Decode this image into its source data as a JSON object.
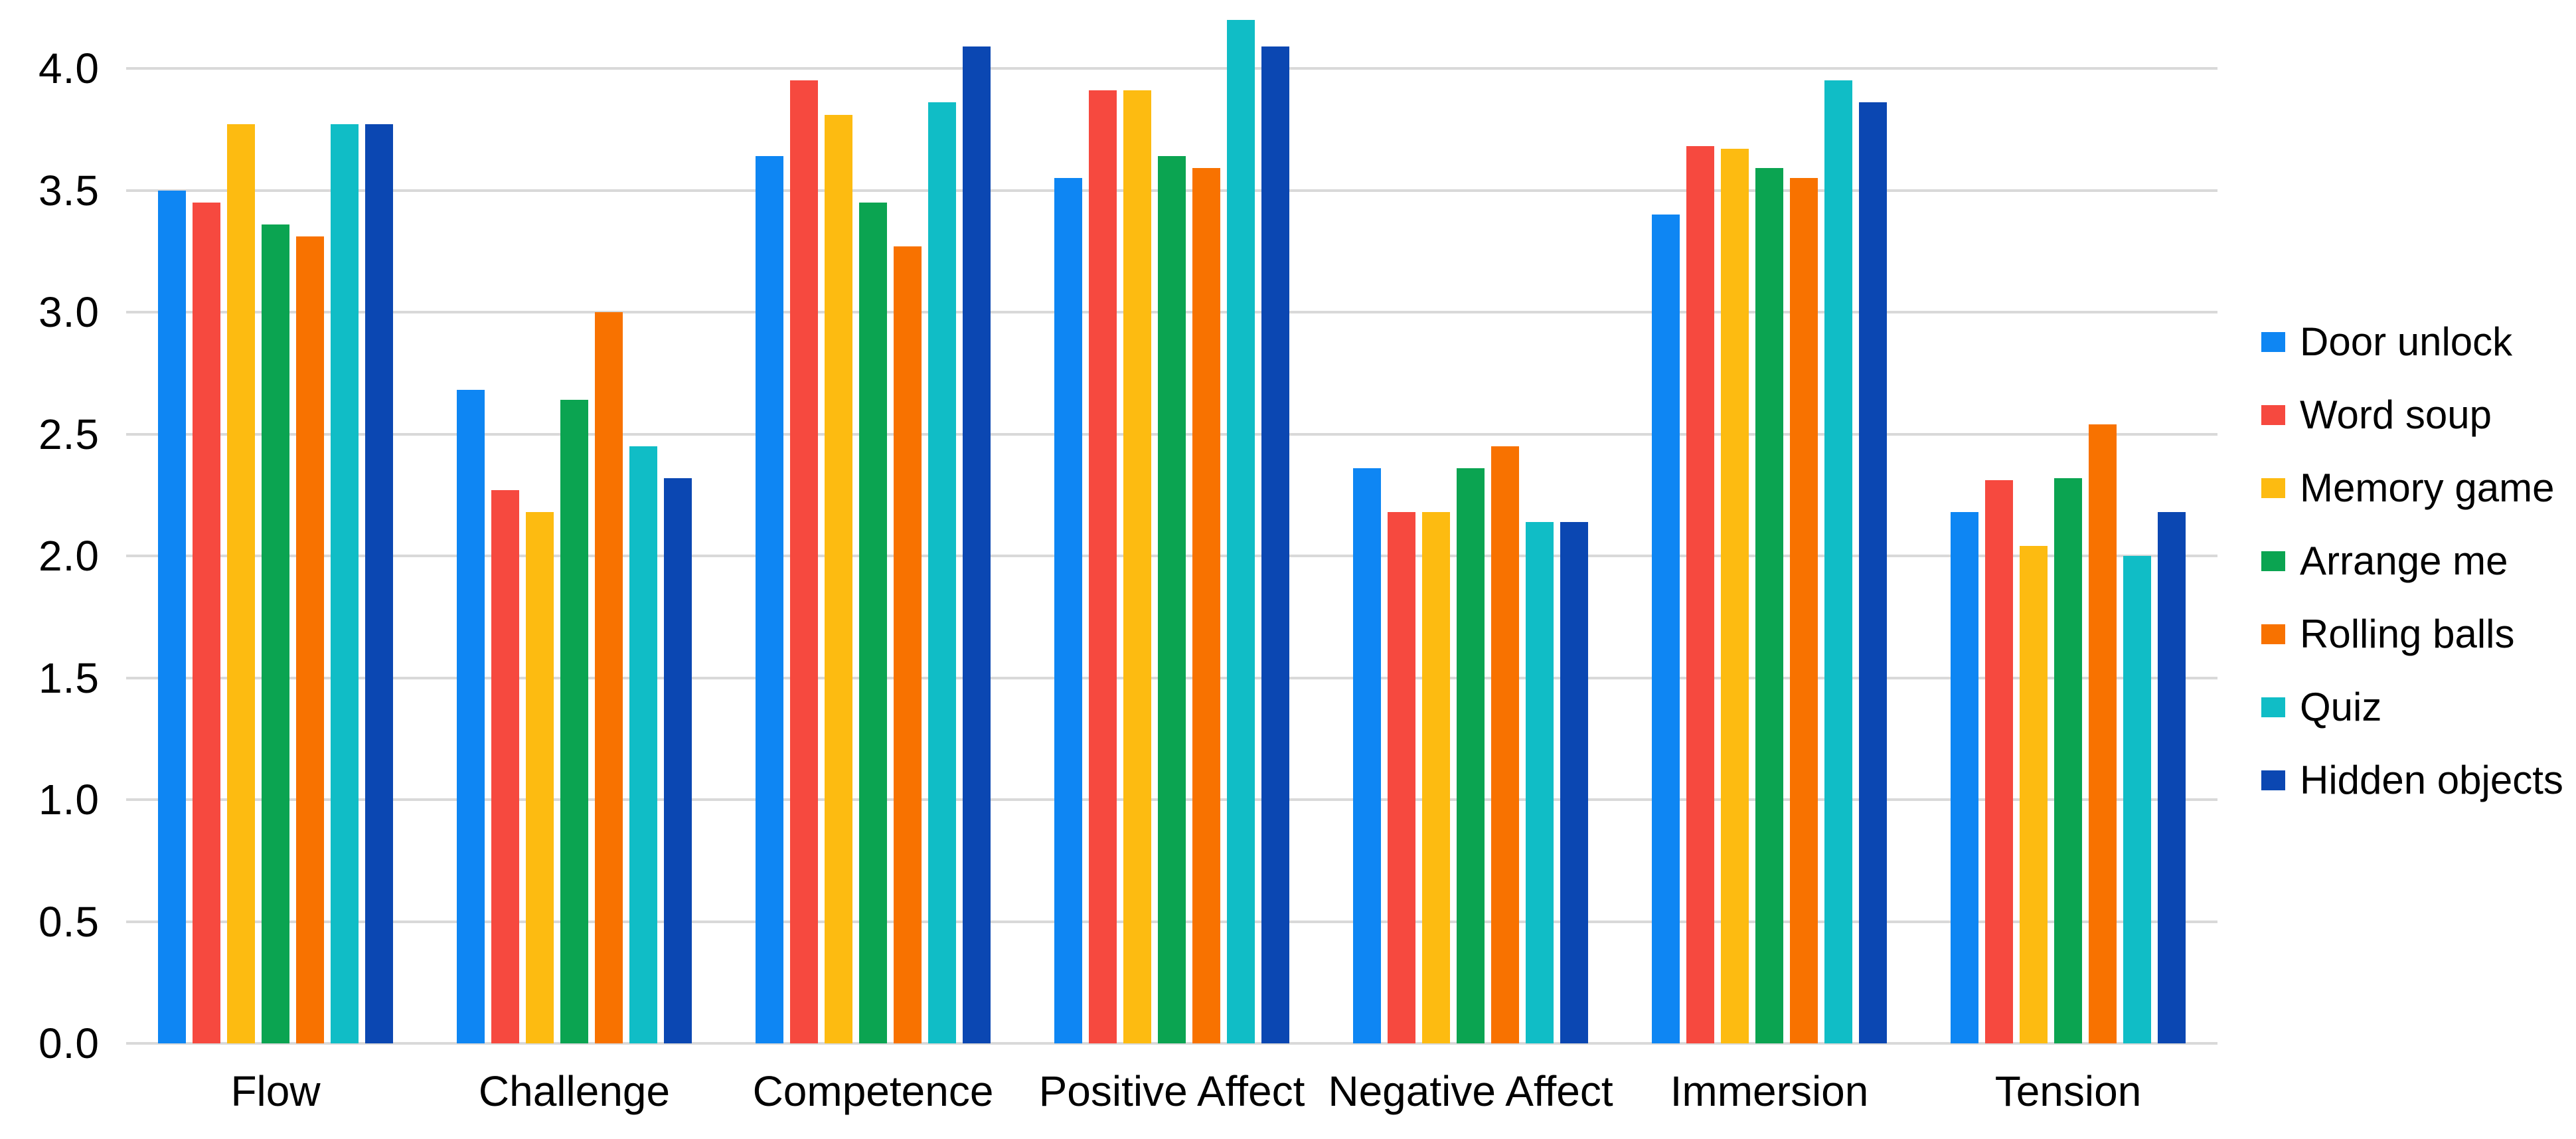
{
  "chart_data": {
    "type": "bar",
    "title": "",
    "xlabel": "",
    "ylabel": "",
    "categories": [
      "Flow",
      "Challenge",
      "Competence",
      "Positive Affect",
      "Negative Affect",
      "Immersion",
      "Tension"
    ],
    "series": [
      {
        "name": "Door unlock",
        "color": "#0e86f3",
        "values": [
          3.5,
          2.68,
          3.64,
          3.55,
          2.36,
          3.4,
          2.18
        ]
      },
      {
        "name": "Word soup",
        "color": "#f6493f",
        "values": [
          3.45,
          2.27,
          3.95,
          3.91,
          2.18,
          3.68,
          2.31
        ]
      },
      {
        "name": "Memory game",
        "color": "#fdbb11",
        "values": [
          3.77,
          2.18,
          3.81,
          3.91,
          2.18,
          3.67,
          2.04
        ]
      },
      {
        "name": "Arrange me",
        "color": "#0ba451",
        "values": [
          3.36,
          2.64,
          3.45,
          3.64,
          2.36,
          3.59,
          2.32
        ]
      },
      {
        "name": "Rolling balls",
        "color": "#f87200",
        "values": [
          3.31,
          3.0,
          3.27,
          3.59,
          2.45,
          3.55,
          2.54
        ]
      },
      {
        "name": "Quiz",
        "color": "#10bdc6",
        "values": [
          3.77,
          2.45,
          3.86,
          4.2,
          2.14,
          3.95,
          2.0
        ]
      },
      {
        "name": "Hidden objects",
        "color": "#0b47b2",
        "values": [
          3.77,
          2.32,
          4.09,
          4.09,
          2.14,
          3.86,
          2.18
        ]
      }
    ],
    "yticks": [
      "0.0",
      "0.5",
      "1.0",
      "1.5",
      "2.0",
      "2.5",
      "3.0",
      "3.5",
      "4.0"
    ],
    "ylim": [
      0,
      4.3
    ],
    "ytick_step": 0.5,
    "grid": true,
    "legend_position": "right"
  },
  "colors": {
    "gridline": "#d9d9d9",
    "text": "#000000",
    "background": "#ffffff"
  }
}
